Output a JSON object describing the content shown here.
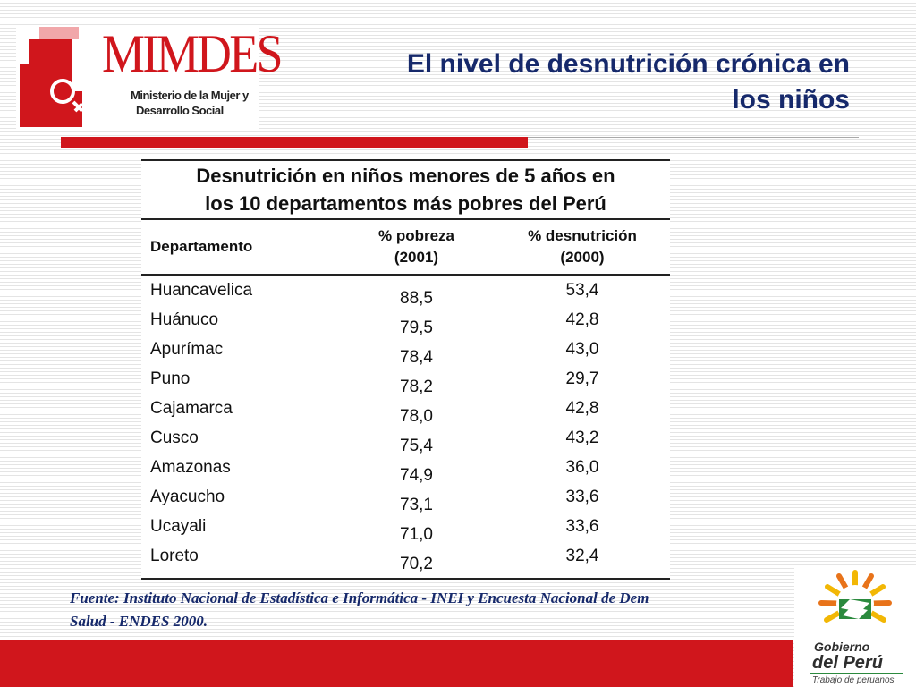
{
  "logo": {
    "name": "MIMDES",
    "subtitle_lines": [
      "Ministerio de la Mujer y",
      "Desarrollo Social"
    ]
  },
  "slide": {
    "title_lines": [
      "El nivel de desnutrición crónica en",
      "los niños"
    ]
  },
  "table": {
    "caption_lines": [
      "Desnutrición en niños menores de 5 años en",
      "los 10 departamentos más pobres del Perú"
    ],
    "columns": [
      {
        "lines": [
          "Departamento"
        ]
      },
      {
        "lines": [
          "% pobreza",
          "(2001)"
        ]
      },
      {
        "lines": [
          "% desnutrición",
          "(2000)"
        ]
      }
    ],
    "rows": [
      {
        "departamento": "Huancavelica",
        "pobreza": "88,5",
        "desnutricion": "53,4"
      },
      {
        "departamento": "Huánuco",
        "pobreza": "79,5",
        "desnutricion": "42,8"
      },
      {
        "departamento": "Apurímac",
        "pobreza": "78,4",
        "desnutricion": "43,0"
      },
      {
        "departamento": "Puno",
        "pobreza": "78,2",
        "desnutricion": "29,7"
      },
      {
        "departamento": "Cajamarca",
        "pobreza": "78,0",
        "desnutricion": "42,8"
      },
      {
        "departamento": "Cusco",
        "pobreza": "75,4",
        "desnutricion": "43,2"
      },
      {
        "departamento": "Amazonas",
        "pobreza": "74,9",
        "desnutricion": "36,0"
      },
      {
        "departamento": "Ayacucho",
        "pobreza": "73,1",
        "desnutricion": "33,6"
      },
      {
        "departamento": "Ucayali",
        "pobreza": "71,0",
        "desnutricion": "33,6"
      },
      {
        "departamento": "Loreto",
        "pobreza": "70,2",
        "desnutricion": "32,4"
      }
    ]
  },
  "footnote": {
    "lines": [
      "Fuente: Instituto Nacional de Estadística e Informática - INEI y Encuesta Nacional de Dem",
      "Salud - ENDES 2000."
    ]
  },
  "gov_logo": {
    "name_lines": [
      "Gobierno",
      "del Perú"
    ],
    "slogan": "Trabajo de peruanos"
  },
  "colors": {
    "brand_red": "#d0161c",
    "title_navy": "#16296b",
    "sun_yellow": "#f2b705",
    "sun_orange": "#e8731a",
    "gov_green": "#2b8a3e"
  },
  "icons": {
    "mimdes_mark": "mimdes-logo-icon",
    "gov_emblem": "gobierno-peru-emblem-icon"
  }
}
